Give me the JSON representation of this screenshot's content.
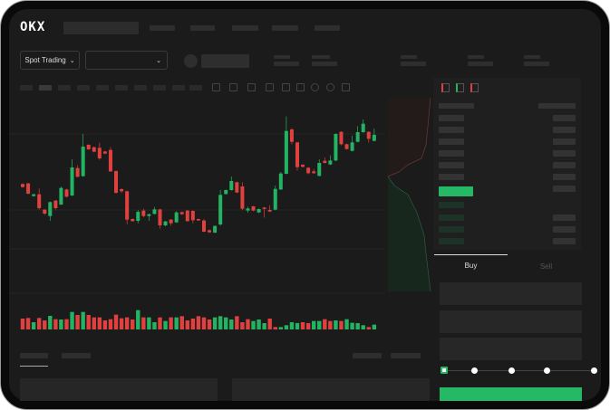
{
  "header": {
    "logo": "OKX"
  },
  "toolbar": {
    "market_selector": "Spot Trading",
    "pair_selector": ""
  },
  "order_form": {
    "tabs": [
      "Buy",
      "Sell"
    ],
    "active_tab": "Buy",
    "leverage_steps": 5,
    "selected_step": 0
  },
  "colors": {
    "up": "#22b462",
    "down": "#e0403e",
    "background": "#1b1b1b",
    "accent": "#25b865"
  },
  "icons": {
    "chevron": "chevron-down-icon",
    "orderbook_views": [
      "orderbook-both-icon",
      "orderbook-bids-icon",
      "orderbook-asks-icon"
    ]
  },
  "chart_data": {
    "type": "candlestick",
    "candles": [
      [
        250,
        240,
        252,
        238
      ],
      [
        252,
        218,
        254,
        216
      ],
      [
        210,
        216,
        218,
        208
      ],
      [
        216,
        170,
        235,
        165
      ],
      [
        165,
        152,
        167,
        148
      ],
      [
        144,
        190,
        192,
        128
      ],
      [
        195,
        170,
        197,
        166
      ],
      [
        182,
        237,
        242,
        180
      ],
      [
        232,
        208,
        234,
        205
      ],
      [
        212,
        305,
        332,
        210
      ],
      [
        303,
        274,
        312,
        272
      ],
      [
        276,
        374,
        416,
        274
      ],
      [
        380,
        365,
        382,
        363
      ],
      [
        372,
        357,
        374,
        355
      ],
      [
        370,
        335,
        387,
        330
      ],
      [
        358,
        351,
        360,
        349
      ],
      [
        363,
        292,
        372,
        290
      ],
      [
        293,
        221,
        295,
        218
      ],
      [
        233,
        226,
        236,
        220
      ],
      [
        226,
        132,
        228,
        117
      ],
      [
        134,
        127,
        136,
        125
      ],
      [
        128,
        158,
        164,
        120
      ],
      [
        162,
        144,
        168,
        140
      ],
      [
        144,
        150,
        152,
        128
      ],
      [
        151,
        166,
        174,
        149
      ],
      [
        166,
        113,
        168,
        102
      ],
      [
        113,
        126,
        128,
        110
      ],
      [
        132,
        120,
        134,
        112
      ],
      [
        123,
        156,
        160,
        121
      ],
      [
        157,
        150,
        159,
        148
      ],
      [
        162,
        127,
        164,
        125
      ],
      [
        161,
        130,
        163,
        120
      ],
      [
        134,
        130,
        136,
        128
      ],
      [
        129,
        92,
        134,
        90
      ],
      [
        97,
        90,
        99,
        88
      ],
      [
        89,
        111,
        113,
        87
      ],
      [
        116,
        214,
        230,
        112
      ],
      [
        217,
        230,
        232,
        215
      ],
      [
        230,
        260,
        275,
        228
      ],
      [
        256,
        222,
        258,
        220
      ],
      [
        242,
        168,
        256,
        164
      ],
      [
        162,
        169,
        175,
        155
      ],
      [
        176,
        162,
        178,
        160
      ],
      [
        156,
        167,
        169,
        154
      ],
      [
        172,
        170,
        174,
        139
      ],
      [
        164,
        159,
        180,
        157
      ],
      [
        165,
        234,
        245,
        163
      ],
      [
        232,
        285,
        290,
        230
      ],
      [
        284,
        426,
        474,
        282
      ],
      [
        431,
        390,
        436,
        382
      ],
      [
        388,
        306,
        390,
        295
      ],
      [
        314,
        307,
        316,
        305
      ],
      [
        304,
        286,
        306,
        283
      ],
      [
        292,
        286,
        300,
        284
      ],
      [
        277,
        320,
        332,
        275
      ],
      [
        327,
        320,
        338,
        318
      ],
      [
        315,
        328,
        345,
        313
      ],
      [
        328,
        416,
        418,
        326
      ],
      [
        423,
        382,
        425,
        378
      ],
      [
        382,
        366,
        384,
        364
      ],
      [
        360,
        388,
        410,
        358
      ],
      [
        390,
        422,
        442,
        388
      ],
      [
        422,
        450,
        464,
        420
      ],
      [
        423,
        400,
        425,
        388
      ],
      [
        393,
        413,
        434,
        391
      ]
    ],
    "volume": [
      [
        36,
        "d"
      ],
      [
        38,
        "d"
      ],
      [
        24,
        "u"
      ],
      [
        38,
        "d"
      ],
      [
        30,
        "d"
      ],
      [
        45,
        "u"
      ],
      [
        34,
        "d"
      ],
      [
        33,
        "u"
      ],
      [
        34,
        "d"
      ],
      [
        58,
        "u"
      ],
      [
        48,
        "d"
      ],
      [
        58,
        "u"
      ],
      [
        48,
        "d"
      ],
      [
        40,
        "d"
      ],
      [
        40,
        "d"
      ],
      [
        30,
        "d"
      ],
      [
        34,
        "d"
      ],
      [
        49,
        "d"
      ],
      [
        37,
        "d"
      ],
      [
        40,
        "d"
      ],
      [
        33,
        "d"
      ],
      [
        64,
        "u"
      ],
      [
        40,
        "d"
      ],
      [
        40,
        "u"
      ],
      [
        24,
        "u"
      ],
      [
        40,
        "d"
      ],
      [
        28,
        "u"
      ],
      [
        40,
        "d"
      ],
      [
        40,
        "u"
      ],
      [
        44,
        "d"
      ],
      [
        30,
        "d"
      ],
      [
        36,
        "d"
      ],
      [
        44,
        "d"
      ],
      [
        40,
        "d"
      ],
      [
        33,
        "d"
      ],
      [
        40,
        "u"
      ],
      [
        44,
        "u"
      ],
      [
        40,
        "u"
      ],
      [
        33,
        "u"
      ],
      [
        44,
        "d"
      ],
      [
        24,
        "d"
      ],
      [
        34,
        "d"
      ],
      [
        28,
        "u"
      ],
      [
        33,
        "u"
      ],
      [
        21,
        "u"
      ],
      [
        36,
        "d"
      ],
      [
        8,
        "d"
      ],
      [
        8,
        "u"
      ],
      [
        14,
        "u"
      ],
      [
        24,
        "u"
      ],
      [
        21,
        "u"
      ],
      [
        24,
        "d"
      ],
      [
        21,
        "d"
      ],
      [
        28,
        "u"
      ],
      [
        28,
        "u"
      ],
      [
        34,
        "d"
      ],
      [
        28,
        "d"
      ],
      [
        30,
        "u"
      ],
      [
        28,
        "d"
      ],
      [
        34,
        "u"
      ],
      [
        22,
        "u"
      ],
      [
        21,
        "u"
      ],
      [
        14,
        "u"
      ],
      [
        8,
        "d"
      ],
      [
        16,
        "u"
      ]
    ],
    "grid": true
  }
}
